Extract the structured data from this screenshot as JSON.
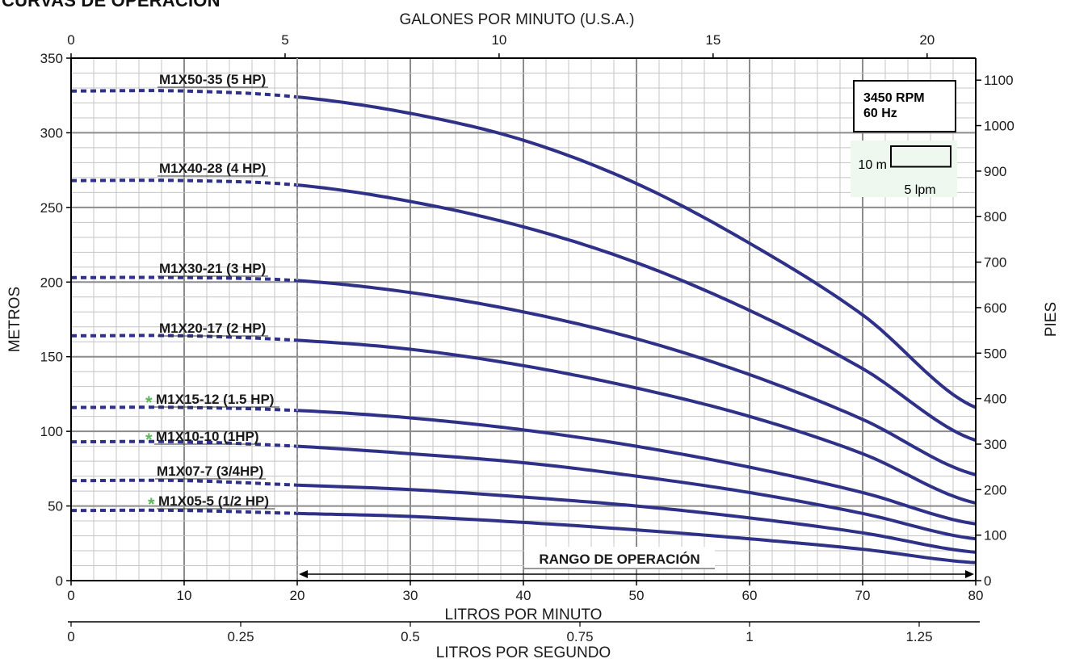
{
  "page": {
    "title": "CURVAS DE OPERACIÓN"
  },
  "chart_data": {
    "type": "line",
    "title": "CURVAS DE OPERACIÓN",
    "xlabel": "LITROS POR MINUTO",
    "ylabel": "METROS",
    "xlim": [
      0,
      80
    ],
    "ylim": [
      0,
      350
    ],
    "x_ticks": [
      0,
      10,
      20,
      30,
      40,
      50,
      60,
      70,
      80
    ],
    "y_ticks": [
      0,
      50,
      100,
      150,
      200,
      250,
      300,
      350
    ],
    "grid": true,
    "top_axis": {
      "label": "GALONES POR MINUTO (U.S.A.)",
      "ticks": [
        0,
        5,
        10,
        15,
        20
      ],
      "lpm_per_unit": 3.785
    },
    "right_axis": {
      "label": "PIES",
      "ticks": [
        0,
        100,
        200,
        300,
        400,
        500,
        600,
        700,
        800,
        900,
        1000,
        1100
      ],
      "meters_per_unit": 0.3048
    },
    "bottom_axis_2": {
      "label": "LITROS POR SEGUNDO",
      "ticks": [
        "0",
        "0.25",
        "0.5",
        "0.75",
        "1",
        "1.25"
      ],
      "lpm_per_unit": 60
    },
    "operating_range": {
      "label": "RANGO DE OPERACIÓN",
      "from": 20,
      "to": 80
    },
    "info_box": {
      "line1": "3450 RPM",
      "line2": "60 Hz"
    },
    "scale_box": {
      "height_label": "10 m",
      "width_label": "5 lpm",
      "height_m": 10,
      "width_lpm": 5
    },
    "colors": {
      "curve": "#2e3187",
      "grid": "#9a9a9a",
      "asterisk": "#5cb85c",
      "scale_fill": "#eef8ee"
    },
    "series": [
      {
        "name": "M1X50-35 (5 HP)",
        "asterisk": false,
        "x": [
          0,
          10,
          20,
          30,
          40,
          50,
          60,
          70,
          80
        ],
        "y": [
          328,
          328,
          324,
          313,
          295,
          266,
          226,
          178,
          116
        ]
      },
      {
        "name": "M1X40-28 (4 HP)",
        "asterisk": false,
        "x": [
          0,
          10,
          20,
          30,
          40,
          50,
          60,
          70,
          80
        ],
        "y": [
          268,
          268,
          265,
          254,
          237,
          213,
          181,
          142,
          94
        ]
      },
      {
        "name": "M1X30-21 (3 HP)",
        "asterisk": false,
        "x": [
          0,
          10,
          20,
          30,
          40,
          50,
          60,
          70,
          80
        ],
        "y": [
          203,
          203,
          201,
          193,
          180,
          162,
          138,
          108,
          71
        ]
      },
      {
        "name": "M1X20-17 (2 HP)",
        "asterisk": false,
        "x": [
          0,
          10,
          20,
          30,
          40,
          50,
          60,
          70,
          80
        ],
        "y": [
          164,
          164,
          161,
          155,
          144,
          129,
          110,
          85,
          52
        ]
      },
      {
        "name": "M1X15-12 (1.5 HP)",
        "asterisk": true,
        "x": [
          0,
          10,
          20,
          30,
          40,
          50,
          60,
          70,
          80
        ],
        "y": [
          116,
          116,
          114,
          109,
          101,
          90,
          76,
          59,
          38
        ]
      },
      {
        "name": "M1X10-10 (1HP)",
        "asterisk": true,
        "x": [
          0,
          10,
          20,
          30,
          40,
          50,
          60,
          70,
          80
        ],
        "y": [
          93,
          93,
          90,
          85,
          79,
          70,
          59,
          45,
          28
        ]
      },
      {
        "name": "M1X07-7 (3/4HP)",
        "asterisk": false,
        "x": [
          0,
          10,
          20,
          30,
          40,
          50,
          60,
          70,
          80
        ],
        "y": [
          67,
          67,
          64,
          61,
          56,
          50,
          42,
          32,
          19
        ]
      },
      {
        "name": "M1X05-5 (1/2 HP)",
        "asterisk": true,
        "x": [
          0,
          10,
          20,
          30,
          40,
          50,
          60,
          70,
          80
        ],
        "y": [
          47,
          47,
          45,
          43,
          39,
          34,
          28,
          21,
          12
        ]
      }
    ]
  }
}
